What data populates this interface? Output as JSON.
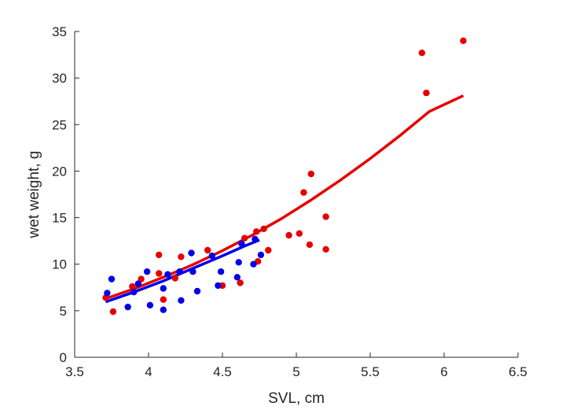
{
  "chart_data": {
    "type": "scatter",
    "title": "",
    "xlabel": "SVL, cm",
    "ylabel": "wet weight, g",
    "xlim": [
      3.5,
      6.5
    ],
    "ylim": [
      0,
      35
    ],
    "x_ticks": [
      3.5,
      4,
      4.5,
      5,
      5.5,
      6,
      6.5
    ],
    "x_tick_labels": [
      "3.5",
      "4",
      "4.5",
      "5",
      "5.5",
      "6",
      "6.5"
    ],
    "y_ticks": [
      0,
      5,
      10,
      15,
      20,
      25,
      30,
      35
    ],
    "y_tick_labels": [
      "0",
      "5",
      "10",
      "15",
      "20",
      "25",
      "30",
      "35"
    ],
    "grid": false,
    "box": false,
    "series": [
      {
        "color": "#e60000",
        "type": "scatter",
        "points": [
          [
            3.71,
            6.4
          ],
          [
            3.76,
            4.9
          ],
          [
            3.89,
            7.6
          ],
          [
            3.95,
            8.4
          ],
          [
            4.07,
            11.0
          ],
          [
            4.07,
            9.0
          ],
          [
            4.1,
            6.2
          ],
          [
            4.18,
            8.5
          ],
          [
            4.22,
            10.8
          ],
          [
            4.4,
            11.5
          ],
          [
            4.5,
            7.7
          ],
          [
            4.62,
            8.0
          ],
          [
            4.65,
            12.8
          ],
          [
            4.73,
            13.5
          ],
          [
            4.74,
            10.3
          ],
          [
            4.78,
            13.8
          ],
          [
            4.81,
            11.5
          ],
          [
            4.95,
            13.1
          ],
          [
            5.02,
            13.3
          ],
          [
            5.05,
            17.7
          ],
          [
            5.09,
            12.1
          ],
          [
            5.1,
            19.7
          ],
          [
            5.2,
            15.1
          ],
          [
            5.2,
            11.6
          ],
          [
            5.85,
            32.7
          ],
          [
            5.88,
            28.4
          ],
          [
            6.13,
            34.0
          ]
        ]
      },
      {
        "color": "#0000e6",
        "type": "scatter",
        "points": [
          [
            3.72,
            6.9
          ],
          [
            3.75,
            8.4
          ],
          [
            3.86,
            5.4
          ],
          [
            3.9,
            7.0
          ],
          [
            3.93,
            7.9
          ],
          [
            3.99,
            9.2
          ],
          [
            4.01,
            5.6
          ],
          [
            4.1,
            5.1
          ],
          [
            4.1,
            7.4
          ],
          [
            4.13,
            8.9
          ],
          [
            4.21,
            9.2
          ],
          [
            4.22,
            6.1
          ],
          [
            4.29,
            11.2
          ],
          [
            4.3,
            9.2
          ],
          [
            4.33,
            7.1
          ],
          [
            4.43,
            10.9
          ],
          [
            4.47,
            7.7
          ],
          [
            4.49,
            9.2
          ],
          [
            4.6,
            8.6
          ],
          [
            4.61,
            10.2
          ],
          [
            4.63,
            12.2
          ],
          [
            4.71,
            10.0
          ],
          [
            4.72,
            12.7
          ],
          [
            4.76,
            11.0
          ]
        ]
      },
      {
        "color": "#e60000",
        "type": "line",
        "points": [
          [
            3.7,
            6.25
          ],
          [
            3.9,
            7.35
          ],
          [
            4.1,
            8.6
          ],
          [
            4.3,
            9.95
          ],
          [
            4.5,
            11.45
          ],
          [
            4.7,
            13.1
          ],
          [
            4.9,
            14.9
          ],
          [
            5.1,
            16.9
          ],
          [
            5.3,
            19.05
          ],
          [
            5.5,
            21.35
          ],
          [
            5.7,
            23.8
          ],
          [
            5.9,
            26.4
          ],
          [
            6.13,
            28.1
          ]
        ]
      },
      {
        "color": "#0000e6",
        "type": "line",
        "points": [
          [
            3.71,
            5.95
          ],
          [
            3.9,
            7.0
          ],
          [
            4.1,
            8.2
          ],
          [
            4.3,
            9.55
          ],
          [
            4.5,
            10.9
          ],
          [
            4.65,
            11.95
          ],
          [
            4.75,
            12.6
          ]
        ]
      }
    ]
  }
}
